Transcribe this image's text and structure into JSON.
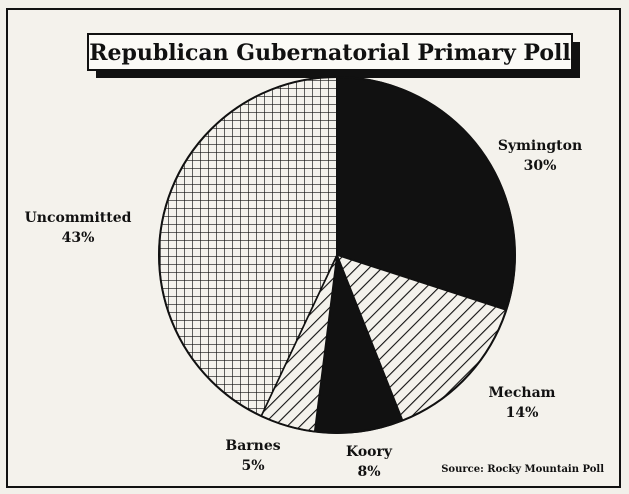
{
  "chart_data": {
    "type": "pie",
    "title": "Republican Gubernatorial Primary Poll",
    "source_note": "Source: Rocky Mountain Poll",
    "slices": [
      {
        "name": "Symington",
        "value": 30,
        "label": "30%",
        "fill": "solid"
      },
      {
        "name": "Mecham",
        "value": 14,
        "label": "14%",
        "fill": "diagonal-hatch"
      },
      {
        "name": "Koory",
        "value": 8,
        "label": "8%",
        "fill": "solid"
      },
      {
        "name": "Barnes",
        "value": 5,
        "label": "5%",
        "fill": "diagonal-hatch"
      },
      {
        "name": "Uncommitted",
        "value": 43,
        "label": "43%",
        "fill": "grid"
      }
    ],
    "colors": {
      "ink": "#111111",
      "paper": "#f4f2ec"
    }
  }
}
